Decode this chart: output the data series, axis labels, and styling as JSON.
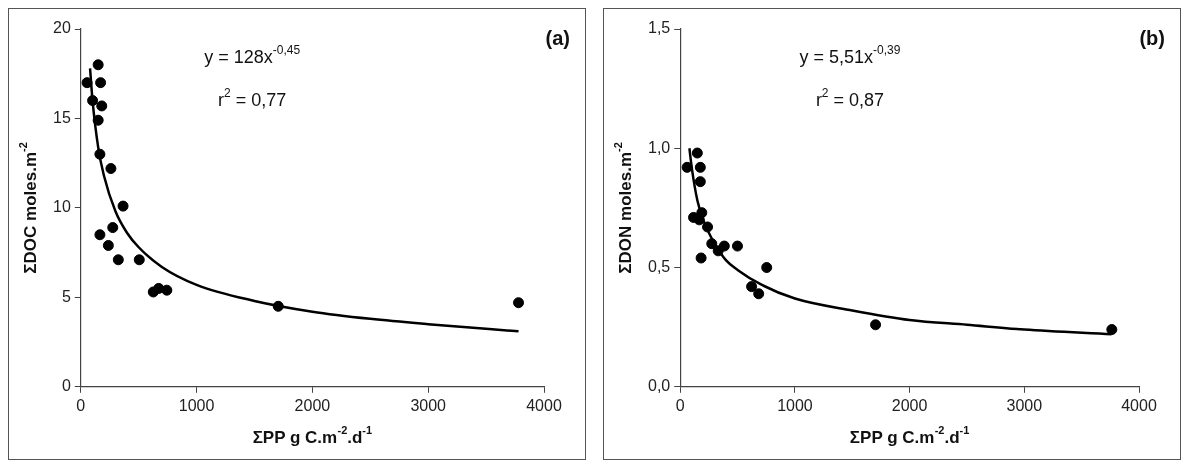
{
  "chart_data": [
    {
      "type": "scatter",
      "title": "(a)",
      "xlabel": "ΣPP g C.m$^{-2}$.d$^{-1}$",
      "ylabel": "ΣDOC moles.m$^{-2}$",
      "annotations": [
        "y = 128x$^{-0,45}$",
        "r$^{2}$ = 0,77"
      ],
      "xlim": [
        0,
        4000
      ],
      "xticks": [
        0,
        1000,
        2000,
        3000,
        4000
      ],
      "ylim": [
        0,
        20
      ],
      "yticks": [
        0,
        5,
        10,
        15,
        20
      ],
      "grid": false,
      "legend": false,
      "marker": "circle",
      "series": [
        {
          "color": "#000000",
          "x": [
            54,
            150,
            171,
            102,
            181,
            150,
            165,
            260,
            365,
            165,
            276,
            238,
            324,
            505,
            626,
            673,
            743,
            1705,
            3780
          ],
          "values": [
            17.0,
            18.0,
            17.0,
            16.0,
            15.7,
            14.9,
            13.0,
            12.2,
            10.1,
            8.5,
            8.9,
            7.9,
            7.1,
            7.1,
            5.3,
            5.5,
            5.4,
            4.5,
            4.7
          ]
        },
        {
          "type": "line",
          "marker": "none",
          "color": "#000000",
          "x": [
            80,
            100,
            150,
            200,
            300,
            400,
            500,
            700,
            1000,
            1500,
            2000,
            2500,
            3000,
            3780
          ],
          "values": [
            17.8,
            16.1,
            13.4,
            11.8,
            9.8,
            8.6,
            7.8,
            6.7,
            5.7,
            4.8,
            4.2,
            3.8,
            3.5,
            3.1
          ]
        }
      ]
    },
    {
      "type": "scatter",
      "title": "(b)",
      "xlabel": "ΣPP g C.m$^{-2}$.d$^{-1}$",
      "ylabel": "ΣDON moles.m$^{-2}$",
      "annotations": [
        "y = 5,51x$^{-0,39}$",
        "r$^{2}$ = 0,87"
      ],
      "xlim": [
        0,
        4000
      ],
      "xticks": [
        0,
        1000,
        2000,
        3000,
        4000
      ],
      "ylim": [
        0,
        1.5
      ],
      "yticks": [
        {
          "value": 0,
          "label": "0,0"
        },
        {
          "value": 0.5,
          "label": "0,5"
        },
        {
          "value": 1,
          "label": "1,0"
        },
        {
          "value": 1.5,
          "label": "1,5"
        }
      ],
      "grid": false,
      "legend": false,
      "marker": "circle",
      "series": [
        {
          "color": "#000000",
          "x": [
            60,
            149,
            175,
            175,
            116,
            166,
            188,
            182,
            238,
            275,
            331,
            384,
            499,
            622,
            684,
            754,
            1703,
            3763
          ],
          "values": [
            0.92,
            0.98,
            0.92,
            0.86,
            0.71,
            0.7,
            0.73,
            0.54,
            0.67,
            0.6,
            0.57,
            0.59,
            0.59,
            0.42,
            0.39,
            0.5,
            0.26,
            0.24
          ]
        },
        {
          "type": "line",
          "marker": "none",
          "color": "#000000",
          "x": [
            80,
            100,
            150,
            200,
            300,
            400,
            500,
            700,
            1000,
            1500,
            2000,
            2500,
            3000,
            3760
          ],
          "values": [
            1.0,
            0.92,
            0.78,
            0.7,
            0.6,
            0.53,
            0.49,
            0.43,
            0.37,
            0.32,
            0.28,
            0.26,
            0.24,
            0.22
          ]
        }
      ]
    }
  ]
}
